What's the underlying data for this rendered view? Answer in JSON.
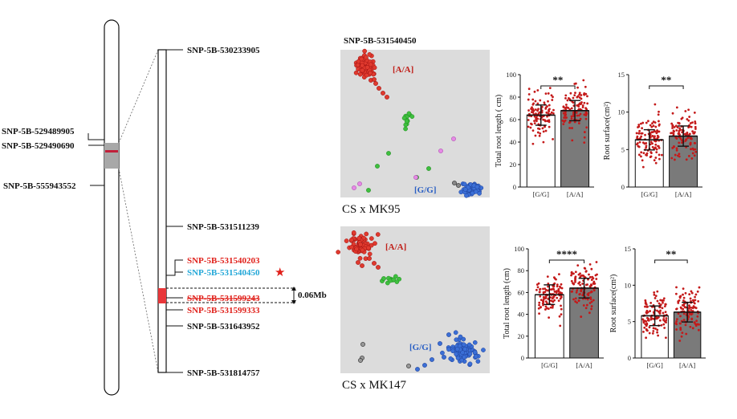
{
  "chromosome_left": {
    "labels": [
      "SNP-5B-529489905",
      "SNP-5B-529490690",
      "SNP-5B-555943552"
    ]
  },
  "chromosome_zoom": {
    "labels": [
      "SNP-5B-530233905",
      "SNP-5B-531511239",
      "SNP-5B-531540203",
      "SNP-5B-531540450",
      "SNP-5B-531599243",
      "SNP-5B-531599333",
      "SNP-5B-531643952",
      "SNP-5B-531814757"
    ],
    "highlight_marker": "★",
    "interval": "0.06Mb"
  },
  "scatter_panels": [
    {
      "title": "SNP-5B-531540450",
      "cross": "CS x MK95",
      "label_aa": "[A/A]",
      "label_gg": "[G/G]"
    },
    {
      "title": "",
      "cross": "CS x MK147",
      "label_aa": "[A/A]",
      "label_gg": "[G/G]"
    }
  ],
  "colors": {
    "red_label": "#e0201a",
    "cyan_label": "#22a7d8",
    "aa_cluster": "#e03a2e",
    "gg_cluster": "#3b6fd6",
    "het": "#3fbf3f",
    "missing": "#e68ae6",
    "bar_gg": "#ffffff",
    "bar_aa": "#7a7a7a",
    "dots": "#c41a1a"
  },
  "chart_data": [
    {
      "type": "bar",
      "categories": [
        "[G/G]",
        "[A/A]"
      ],
      "values": [
        64,
        68
      ],
      "ylabel": "Total root length ( cm)",
      "ylim": [
        0,
        100
      ],
      "yticks": [
        0,
        20,
        40,
        60,
        80,
        100
      ],
      "significance": "**"
    },
    {
      "type": "bar",
      "categories": [
        "[G/G]",
        "[A/A]"
      ],
      "values": [
        6.3,
        6.8
      ],
      "ylabel": "Root surface(cm²)",
      "ylim": [
        0,
        15
      ],
      "yticks": [
        0,
        5,
        10,
        15
      ],
      "significance": "**"
    },
    {
      "type": "bar",
      "categories": [
        "[G/G]",
        "[A/A]"
      ],
      "values": [
        58,
        64
      ],
      "ylabel": "Total root length (cm)",
      "ylim": [
        0,
        100
      ],
      "yticks": [
        0,
        20,
        40,
        60,
        80,
        100
      ],
      "significance": "****"
    },
    {
      "type": "bar",
      "categories": [
        "[G/G]",
        "[A/A]"
      ],
      "values": [
        5.8,
        6.3
      ],
      "ylabel": "Root surface(cm²)",
      "ylim": [
        0,
        15
      ],
      "yticks": [
        0,
        5,
        10,
        15
      ],
      "significance": "**"
    }
  ]
}
